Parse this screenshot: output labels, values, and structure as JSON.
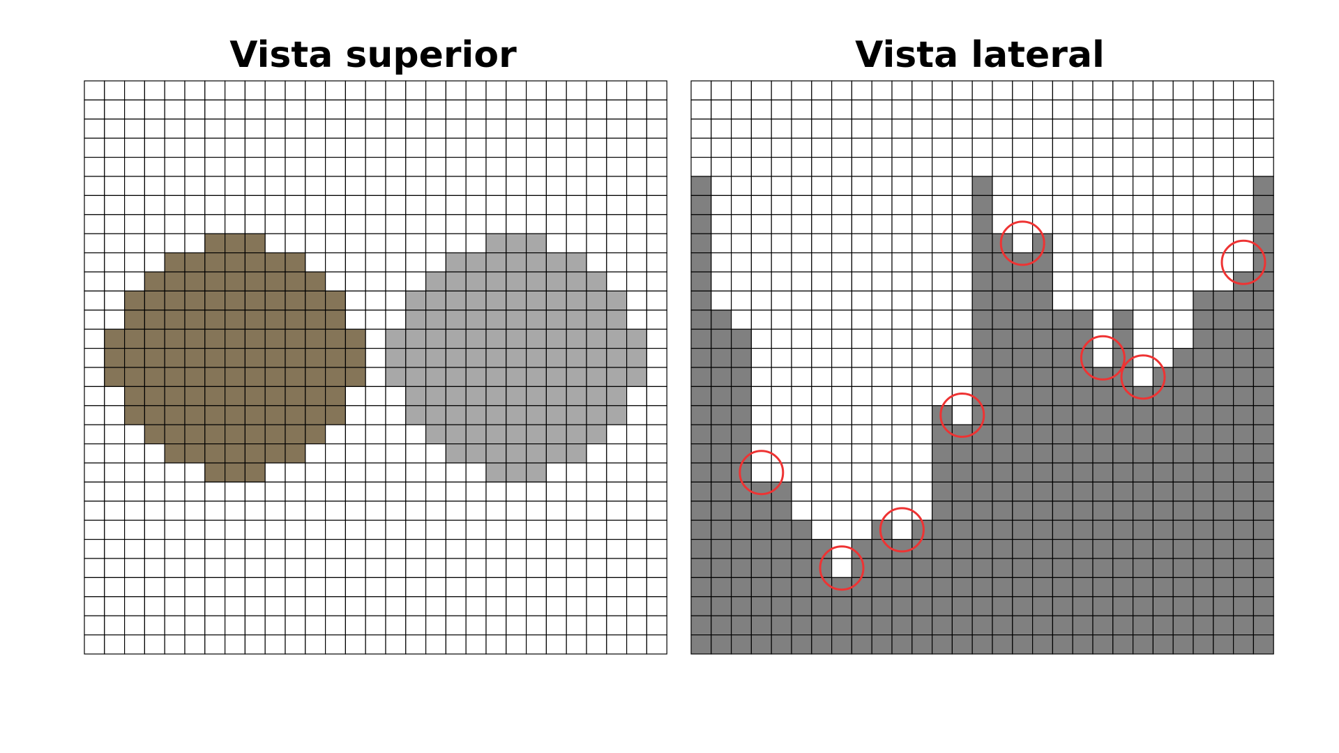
{
  "panels": {
    "top_view": {
      "title": "Vista superior"
    },
    "side_view": {
      "title": "Vista lateral"
    }
  },
  "grid": {
    "columns": 29,
    "rows": 30
  },
  "colors": {
    "cell_border": "#000000",
    "empty_cell": "#ffffff",
    "brown_object": "#857558",
    "gray_object": "#a8a8a8",
    "terrain": "#808080",
    "marker_circle": "#ee3333"
  },
  "top_view_shapes": {
    "brown_object_row_spans": [
      {
        "row": 8,
        "from": 6,
        "to": 8
      },
      {
        "row": 9,
        "from": 4,
        "to": 10
      },
      {
        "row": 10,
        "from": 3,
        "to": 11
      },
      {
        "row": 11,
        "from": 2,
        "to": 12
      },
      {
        "row": 12,
        "from": 2,
        "to": 12
      },
      {
        "row": 13,
        "from": 1,
        "to": 13
      },
      {
        "row": 14,
        "from": 1,
        "to": 13
      },
      {
        "row": 15,
        "from": 1,
        "to": 13
      },
      {
        "row": 16,
        "from": 2,
        "to": 12
      },
      {
        "row": 17,
        "from": 2,
        "to": 12
      },
      {
        "row": 18,
        "from": 3,
        "to": 11
      },
      {
        "row": 19,
        "from": 4,
        "to": 10
      },
      {
        "row": 20,
        "from": 6,
        "to": 8
      }
    ],
    "gray_object_row_spans": [
      {
        "row": 8,
        "from": 20,
        "to": 22
      },
      {
        "row": 9,
        "from": 18,
        "to": 24
      },
      {
        "row": 10,
        "from": 17,
        "to": 25
      },
      {
        "row": 11,
        "from": 16,
        "to": 26
      },
      {
        "row": 12,
        "from": 16,
        "to": 26
      },
      {
        "row": 13,
        "from": 15,
        "to": 27
      },
      {
        "row": 14,
        "from": 15,
        "to": 27
      },
      {
        "row": 15,
        "from": 15,
        "to": 27
      },
      {
        "row": 16,
        "from": 16,
        "to": 26
      },
      {
        "row": 17,
        "from": 16,
        "to": 26
      },
      {
        "row": 18,
        "from": 17,
        "to": 25
      },
      {
        "row": 19,
        "from": 18,
        "to": 24
      },
      {
        "row": 20,
        "from": 20,
        "to": 22
      }
    ]
  },
  "side_view_terrain": {
    "surface_top_row_per_column": [
      5,
      12,
      13,
      20,
      21,
      23,
      24,
      25,
      24,
      23,
      23,
      23,
      17,
      17,
      5,
      8,
      8,
      8,
      12,
      12,
      14,
      12,
      15,
      15,
      14,
      11,
      11,
      9,
      5
    ],
    "marked_columns": [
      3,
      7,
      10,
      13,
      16,
      20,
      22,
      27
    ]
  }
}
